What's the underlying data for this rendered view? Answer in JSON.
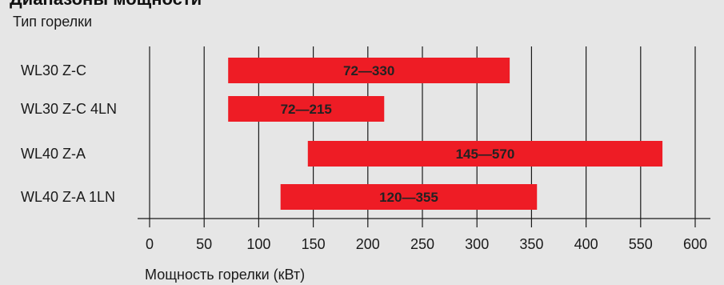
{
  "header": {
    "title_partial": "Диапазоны мощности"
  },
  "chart_data": {
    "type": "bar",
    "orientation": "horizontal-range",
    "ylabel": "Тип горелки",
    "xlabel": "Мощность горелки (кВт)",
    "x_ticks": [
      0,
      50,
      100,
      150,
      200,
      250,
      300,
      350,
      400,
      550,
      600
    ],
    "grid": true,
    "series": [
      {
        "categories": [
          "WL30 Z-C",
          "WL30 Z-C 4LN",
          "WL40 Z-A",
          "WL40 Z-A 1LN"
        ],
        "ranges": [
          [
            72,
            330
          ],
          [
            72,
            215
          ],
          [
            145,
            570
          ],
          [
            120,
            355
          ]
        ],
        "labels": [
          "72—330",
          "72—215",
          "145—570",
          "120—355"
        ]
      }
    ],
    "bar_color": "#ee1c25"
  }
}
